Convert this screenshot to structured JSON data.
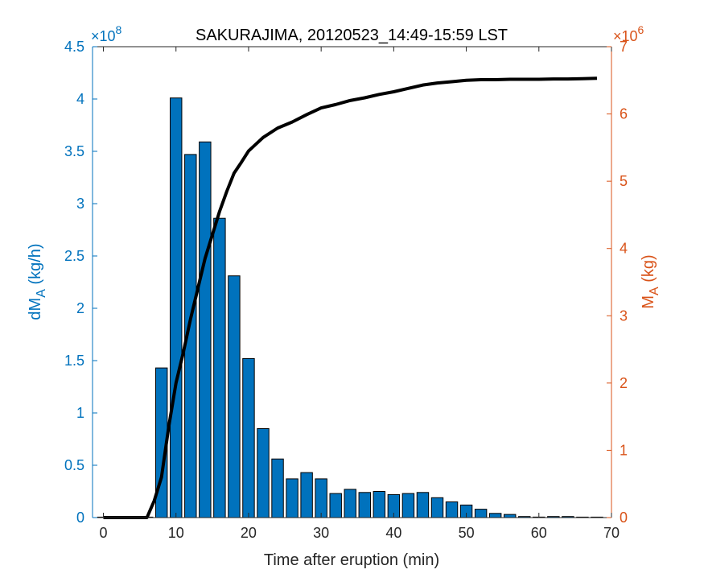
{
  "colors": {
    "left_axis": "#0072BD",
    "right_axis": "#D95319",
    "bars": "#0072BD",
    "line": "#000000",
    "axis": "#262626"
  },
  "chart_data": {
    "type": "bar",
    "title": "SAKURAJIMA, 20120523_14:49-15:59 LST",
    "xlabel": "Time after eruption (min)",
    "ylabel_left": "dM_A (kg/h)",
    "ylabel_right": "M_A (kg)",
    "x_ticks": [
      0,
      10,
      20,
      30,
      40,
      50,
      60,
      70
    ],
    "xlim": [
      -1.5,
      70
    ],
    "left_axis": {
      "ylim": [
        0,
        4.5
      ],
      "ticks": [
        "0",
        "0.5",
        "1",
        "1.5",
        "2",
        "2.5",
        "3",
        "3.5",
        "4",
        "4.5"
      ],
      "exponent_base": "×10",
      "exponent": "8"
    },
    "right_axis": {
      "ylim": [
        0,
        7
      ],
      "ticks": [
        "0",
        "1",
        "2",
        "3",
        "4",
        "5",
        "6",
        "7"
      ],
      "exponent_base": "×10",
      "exponent": "6"
    },
    "series": [
      {
        "axis": "left",
        "type": "bar",
        "x": [
          0,
          2,
          4,
          6,
          8,
          10,
          12,
          14,
          16,
          18,
          20,
          22,
          24,
          26,
          28,
          30,
          32,
          34,
          36,
          38,
          40,
          42,
          44,
          46,
          48,
          50,
          52,
          54,
          56,
          58,
          60,
          62,
          64,
          66,
          68
        ],
        "values": [
          0,
          0,
          0,
          0,
          1.43,
          4.01,
          3.47,
          3.59,
          2.86,
          2.31,
          1.52,
          0.85,
          0.56,
          0.37,
          0.43,
          0.37,
          0.23,
          0.27,
          0.24,
          0.25,
          0.22,
          0.23,
          0.24,
          0.19,
          0.15,
          0.12,
          0.08,
          0.04,
          0.03,
          0.01,
          0.005,
          0.01,
          0.01,
          0,
          0
        ]
      },
      {
        "axis": "right",
        "type": "line",
        "x": [
          0,
          2,
          4,
          6,
          7,
          8,
          9,
          10,
          11,
          12,
          13,
          14,
          15,
          16,
          17,
          18,
          19,
          20,
          22,
          24,
          26,
          28,
          30,
          32,
          34,
          36,
          38,
          40,
          42,
          44,
          46,
          48,
          50,
          52,
          54,
          56,
          58,
          60,
          62,
          64,
          66,
          68
        ],
        "values": [
          0,
          0,
          0,
          0,
          0.25,
          0.6,
          1.35,
          2.0,
          2.45,
          2.95,
          3.4,
          3.85,
          4.2,
          4.55,
          4.85,
          5.12,
          5.28,
          5.45,
          5.65,
          5.79,
          5.88,
          5.99,
          6.09,
          6.14,
          6.2,
          6.24,
          6.29,
          6.33,
          6.38,
          6.43,
          6.46,
          6.48,
          6.5,
          6.51,
          6.51,
          6.515,
          6.515,
          6.515,
          6.52,
          6.52,
          6.525,
          6.53
        ]
      }
    ]
  }
}
